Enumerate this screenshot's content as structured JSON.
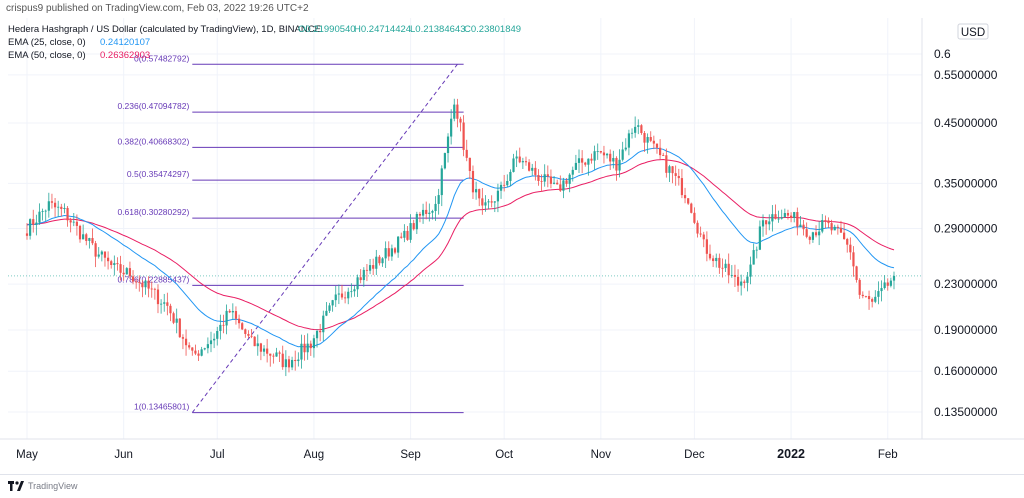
{
  "header": {
    "publisher": "crispus9 published on TradingView.com, Feb 03, 2022 19:26 UTC+2"
  },
  "legend": {
    "symbol": "Hedera Hashgraph / US Dollar (calculated by TradingView), 1D, BINANCE",
    "ohlc": [
      "O0.21990540",
      "H0.24714424",
      "L0.21384643",
      "C0.23801849"
    ],
    "ema25": {
      "label": "EMA (25, close, 0)",
      "value": "0.24120107",
      "color": "#2196f3"
    },
    "ema50": {
      "label": "EMA (50, close, 0)",
      "value": "0.26362903",
      "color": "#e91e63"
    }
  },
  "colors": {
    "up": "#26a69a",
    "down": "#ef5350",
    "fib": "#673ab7",
    "ema25": "#2196f3",
    "ema50": "#e91e63"
  },
  "chart_data": {
    "type": "candlestick",
    "scale": "log",
    "currency": "USD",
    "y_ticks": [
      "0.6",
      "0.55000000",
      "0.45000000",
      "0.35000000",
      "0.29000000",
      "0.23000000",
      "0.19000000",
      "0.16000000",
      "0.13500000"
    ],
    "y_tick_values": [
      0.6,
      0.55,
      0.45,
      0.35,
      0.29,
      0.23,
      0.19,
      0.16,
      0.135
    ],
    "x_ticks": [
      "May",
      "Jun",
      "Jul",
      "Aug",
      "Sep",
      "Oct",
      "Nov",
      "Dec",
      "2022",
      "Feb"
    ],
    "x_tick_dates": [
      "2021-05-01",
      "2021-06-01",
      "2021-07-01",
      "2021-08-01",
      "2021-09-01",
      "2021-10-01",
      "2021-11-01",
      "2021-12-01",
      "2022-01-01",
      "2022-02-01"
    ],
    "bold_ticks": [
      "2022"
    ],
    "last_price": 0.238,
    "fibonacci": {
      "start": {
        "date": "2021-06-23",
        "price": 0.13465801
      },
      "end": {
        "date": "2021-09-16",
        "price": 0.57482792
      },
      "extend_to": "2021-09-18",
      "levels": [
        {
          "label": "1(0.13465801)",
          "price": 0.13465801
        },
        {
          "label": "0.786(0.22885437)",
          "price": 0.22885437
        },
        {
          "label": "0.618(0.30280292)",
          "price": 0.30280292
        },
        {
          "label": "0.5(0.35474297)",
          "price": 0.35474297
        },
        {
          "label": "0.382(0.40668302)",
          "price": 0.40668302
        },
        {
          "label": "0.236(0.47094782)",
          "price": 0.47094782
        },
        {
          "label": "0(0.57482792)",
          "price": 0.57482792
        }
      ]
    },
    "close_path": [
      [
        "2021-05-01",
        0.29
      ],
      [
        "2021-05-08",
        0.32
      ],
      [
        "2021-05-13",
        0.31
      ],
      [
        "2021-05-19",
        0.28
      ],
      [
        "2021-05-24",
        0.26
      ],
      [
        "2021-05-29",
        0.245
      ],
      [
        "2021-06-03",
        0.24
      ],
      [
        "2021-06-09",
        0.225
      ],
      [
        "2021-06-15",
        0.21
      ],
      [
        "2021-06-21",
        0.18
      ],
      [
        "2021-06-23",
        0.17
      ],
      [
        "2021-06-30",
        0.185
      ],
      [
        "2021-07-05",
        0.205
      ],
      [
        "2021-07-12",
        0.18
      ],
      [
        "2021-07-20",
        0.17
      ],
      [
        "2021-07-23",
        0.165
      ],
      [
        "2021-07-31",
        0.18
      ],
      [
        "2021-08-08",
        0.215
      ],
      [
        "2021-08-15",
        0.235
      ],
      [
        "2021-08-22",
        0.255
      ],
      [
        "2021-08-30",
        0.28
      ],
      [
        "2021-09-05",
        0.31
      ],
      [
        "2021-09-09",
        0.32
      ],
      [
        "2021-09-13",
        0.42
      ],
      [
        "2021-09-15",
        0.5
      ],
      [
        "2021-09-17",
        0.44
      ],
      [
        "2021-09-20",
        0.36
      ],
      [
        "2021-09-24",
        0.31
      ],
      [
        "2021-09-30",
        0.34
      ],
      [
        "2021-10-05",
        0.39
      ],
      [
        "2021-10-12",
        0.36
      ],
      [
        "2021-10-18",
        0.34
      ],
      [
        "2021-10-24",
        0.375
      ],
      [
        "2021-10-31",
        0.4
      ],
      [
        "2021-11-06",
        0.38
      ],
      [
        "2021-11-12",
        0.45
      ],
      [
        "2021-11-17",
        0.41
      ],
      [
        "2021-11-23",
        0.37
      ],
      [
        "2021-11-29",
        0.33
      ],
      [
        "2021-12-04",
        0.27
      ],
      [
        "2021-12-09",
        0.25
      ],
      [
        "2021-12-15",
        0.23
      ],
      [
        "2021-12-19",
        0.245
      ],
      [
        "2021-12-23",
        0.3
      ],
      [
        "2021-12-28",
        0.31
      ],
      [
        "2022-01-03",
        0.3
      ],
      [
        "2022-01-07",
        0.285
      ],
      [
        "2022-01-12",
        0.295
      ],
      [
        "2022-01-17",
        0.28
      ],
      [
        "2022-01-20",
        0.265
      ],
      [
        "2022-01-23",
        0.22
      ],
      [
        "2022-01-27",
        0.212
      ],
      [
        "2022-01-31",
        0.225
      ],
      [
        "2022-02-03",
        0.238
      ]
    ]
  },
  "footer": {
    "brand": "TradingView"
  }
}
